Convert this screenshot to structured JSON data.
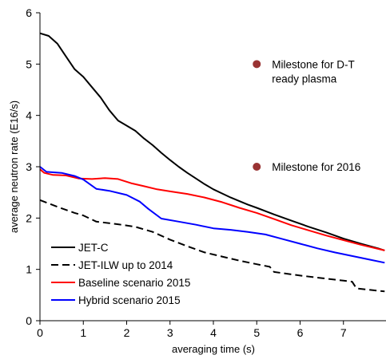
{
  "chart_data": {
    "type": "line",
    "xlabel": "averaging time (s)",
    "ylabel": "average neutron rate (E16/s)",
    "xlim": [
      0,
      8
    ],
    "ylim": [
      0,
      6
    ],
    "xticks": [
      0,
      1,
      2,
      3,
      4,
      5,
      6,
      7
    ],
    "yticks": [
      0,
      1,
      2,
      3,
      4,
      5,
      6
    ],
    "legend_position": "bottom-left",
    "series": [
      {
        "name": "JET-C",
        "color": "#000000",
        "dash": "solid",
        "points": [
          [
            0,
            5.6
          ],
          [
            0.2,
            5.55
          ],
          [
            0.4,
            5.4
          ],
          [
            0.6,
            5.15
          ],
          [
            0.8,
            4.9
          ],
          [
            1.0,
            4.75
          ],
          [
            1.2,
            4.55
          ],
          [
            1.4,
            4.35
          ],
          [
            1.6,
            4.1
          ],
          [
            1.8,
            3.9
          ],
          [
            2.0,
            3.8
          ],
          [
            2.2,
            3.7
          ],
          [
            2.4,
            3.55
          ],
          [
            2.6,
            3.42
          ],
          [
            2.8,
            3.27
          ],
          [
            3.0,
            3.13
          ],
          [
            3.2,
            3.0
          ],
          [
            3.4,
            2.88
          ],
          [
            3.6,
            2.77
          ],
          [
            3.8,
            2.66
          ],
          [
            4.0,
            2.56
          ],
          [
            4.2,
            2.48
          ],
          [
            4.4,
            2.4
          ],
          [
            4.6,
            2.33
          ],
          [
            4.8,
            2.26
          ],
          [
            5.0,
            2.2
          ],
          [
            5.4,
            2.07
          ],
          [
            5.8,
            1.95
          ],
          [
            6.2,
            1.83
          ],
          [
            6.6,
            1.72
          ],
          [
            7.0,
            1.6
          ],
          [
            7.4,
            1.5
          ],
          [
            7.8,
            1.41
          ],
          [
            7.95,
            1.37
          ]
        ]
      },
      {
        "name": "JET-ILW up to 2014",
        "color": "#000000",
        "dash": "dashed",
        "points": [
          [
            0,
            2.35
          ],
          [
            0.4,
            2.22
          ],
          [
            0.8,
            2.1
          ],
          [
            1.0,
            2.05
          ],
          [
            1.3,
            1.93
          ],
          [
            1.8,
            1.88
          ],
          [
            2.2,
            1.83
          ],
          [
            2.6,
            1.73
          ],
          [
            3.0,
            1.58
          ],
          [
            3.4,
            1.45
          ],
          [
            3.8,
            1.33
          ],
          [
            4.2,
            1.25
          ],
          [
            4.6,
            1.17
          ],
          [
            5.0,
            1.1
          ],
          [
            5.3,
            1.05
          ],
          [
            5.4,
            0.95
          ],
          [
            6.0,
            0.88
          ],
          [
            6.5,
            0.83
          ],
          [
            7.0,
            0.78
          ],
          [
            7.2,
            0.76
          ],
          [
            7.3,
            0.63
          ],
          [
            7.95,
            0.57
          ]
        ]
      },
      {
        "name": "Baseline scenario 2015",
        "color": "#ff0000",
        "dash": "solid",
        "points": [
          [
            0,
            2.95
          ],
          [
            0.1,
            2.88
          ],
          [
            0.3,
            2.84
          ],
          [
            0.6,
            2.83
          ],
          [
            0.9,
            2.77
          ],
          [
            1.2,
            2.76
          ],
          [
            1.5,
            2.78
          ],
          [
            1.8,
            2.76
          ],
          [
            2.1,
            2.68
          ],
          [
            2.4,
            2.62
          ],
          [
            2.7,
            2.56
          ],
          [
            3.0,
            2.52
          ],
          [
            3.4,
            2.47
          ],
          [
            3.8,
            2.4
          ],
          [
            4.2,
            2.31
          ],
          [
            4.6,
            2.2
          ],
          [
            5.0,
            2.1
          ],
          [
            5.4,
            1.98
          ],
          [
            5.8,
            1.86
          ],
          [
            6.2,
            1.76
          ],
          [
            6.6,
            1.66
          ],
          [
            7.0,
            1.57
          ],
          [
            7.4,
            1.48
          ],
          [
            7.95,
            1.37
          ]
        ]
      },
      {
        "name": "Hybrid scenario 2015",
        "color": "#0000ff",
        "dash": "solid",
        "points": [
          [
            0,
            3.0
          ],
          [
            0.15,
            2.9
          ],
          [
            0.5,
            2.88
          ],
          [
            0.8,
            2.82
          ],
          [
            1.0,
            2.75
          ],
          [
            1.3,
            2.57
          ],
          [
            1.6,
            2.53
          ],
          [
            2.0,
            2.45
          ],
          [
            2.3,
            2.32
          ],
          [
            2.5,
            2.18
          ],
          [
            2.8,
            1.99
          ],
          [
            3.2,
            1.93
          ],
          [
            3.6,
            1.87
          ],
          [
            4.0,
            1.8
          ],
          [
            4.4,
            1.77
          ],
          [
            4.8,
            1.73
          ],
          [
            5.2,
            1.68
          ],
          [
            5.6,
            1.59
          ],
          [
            6.0,
            1.5
          ],
          [
            6.4,
            1.41
          ],
          [
            6.8,
            1.33
          ],
          [
            7.2,
            1.26
          ],
          [
            7.6,
            1.19
          ],
          [
            7.95,
            1.13
          ]
        ]
      }
    ],
    "annotations": [
      {
        "x": 5.0,
        "y": 5.0,
        "color": "#993333",
        "lines": [
          "Milestone for D-T",
          "ready plasma"
        ]
      },
      {
        "x": 5.0,
        "y": 3.0,
        "color": "#993333",
        "lines": [
          "Milestone for 2016"
        ]
      }
    ]
  }
}
